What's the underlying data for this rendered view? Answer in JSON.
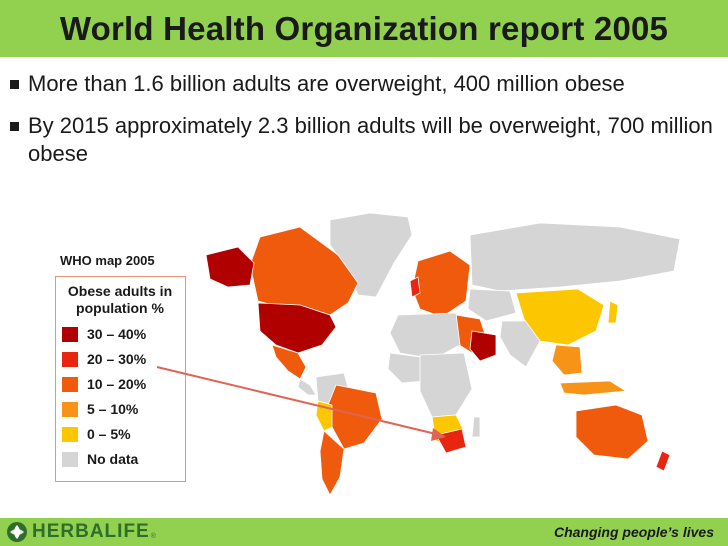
{
  "title": "World Health Organization report 2005",
  "bullets": [
    "More than 1.6 billion adults are overweight, 400 million obese",
    "By 2015 approximately 2.3 billion adults will be overweight, 700 million obese"
  ],
  "legend": {
    "title": "WHO map 2005",
    "heading": "Obese adults in population %",
    "items": [
      {
        "label": "30 – 40%",
        "color": "#b00000"
      },
      {
        "label": "20 – 30%",
        "color": "#e8250f"
      },
      {
        "label": "10 – 20%",
        "color": "#f05a0c"
      },
      {
        "label": "5 – 10%",
        "color": "#f79418"
      },
      {
        "label": "0 – 5%",
        "color": "#fcc600"
      },
      {
        "label": "No data",
        "color": "#d5d5d5"
      }
    ]
  },
  "map": {
    "pointer_color": "#e06454",
    "ocean_color": "#ffffff"
  },
  "footer": {
    "logo_text": "HERBALIFE",
    "logo_mark": "®",
    "tagline": "Changing people’s lives",
    "bar_color": "#92d050"
  }
}
